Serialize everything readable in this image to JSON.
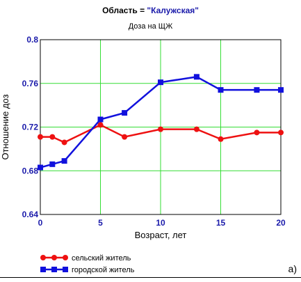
{
  "header": {
    "title_prefix": "Область = ",
    "title_value": "\"Калужская\"",
    "subtitle": "Доза на ЩЖ"
  },
  "panel_label": "a)",
  "chart_data": {
    "type": "line",
    "title": "Область = \"Калужская\"",
    "subtitle": "Доза на ЩЖ",
    "xlabel": "Возраст, лет",
    "ylabel": "Отношение доз",
    "xlim": [
      0,
      20
    ],
    "ylim": [
      0.64,
      0.8
    ],
    "x_ticks": [
      0,
      5,
      10,
      15,
      20
    ],
    "x_tick_labels": [
      "0",
      "5",
      "10",
      "15",
      "20"
    ],
    "y_ticks": [
      0.64,
      0.68,
      0.72,
      0.76,
      0.8
    ],
    "y_tick_labels": [
      "0.64",
      "0.68",
      "0.72",
      "0.76",
      "0.8"
    ],
    "grid": true,
    "legend_position": "bottom-left",
    "series": [
      {
        "name": "сельский житель",
        "color": "#ee1111",
        "marker": "circle",
        "x": [
          0,
          1,
          2,
          5,
          7,
          10,
          13,
          15,
          18,
          20
        ],
        "y": [
          0.711,
          0.711,
          0.706,
          0.722,
          0.711,
          0.718,
          0.718,
          0.709,
          0.715,
          0.715
        ]
      },
      {
        "name": "городской житель",
        "color": "#1111dd",
        "marker": "square",
        "x": [
          0,
          1,
          2,
          5,
          7,
          10,
          13,
          15,
          18,
          20
        ],
        "y": [
          0.683,
          0.686,
          0.689,
          0.727,
          0.733,
          0.761,
          0.766,
          0.754,
          0.754,
          0.754
        ]
      }
    ]
  }
}
